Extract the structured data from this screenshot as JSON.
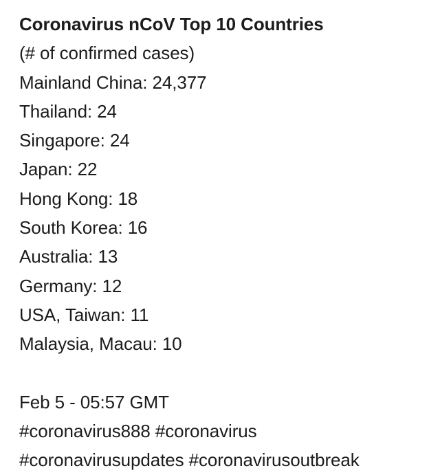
{
  "post": {
    "title": "Coronavirus nCoV Top 10 Countries",
    "subtitle": "(# of confirmed cases)",
    "countries": [
      "Mainland China: 24,377",
      "Thailand: 24",
      "Singapore: 24",
      "Japan: 22",
      "Hong Kong: 18",
      "South Korea: 16",
      "Australia: 13",
      "Germany: 12",
      "USA, Taiwan: 11",
      "Malaysia, Macau: 10"
    ],
    "timestamp": "Feb 5 - 05:57 GMT",
    "hashtags_line1": "#coronavirus888 #coronavirus",
    "hashtags_line2": "#coronavirusupdates #coronavirusoutbreak"
  }
}
